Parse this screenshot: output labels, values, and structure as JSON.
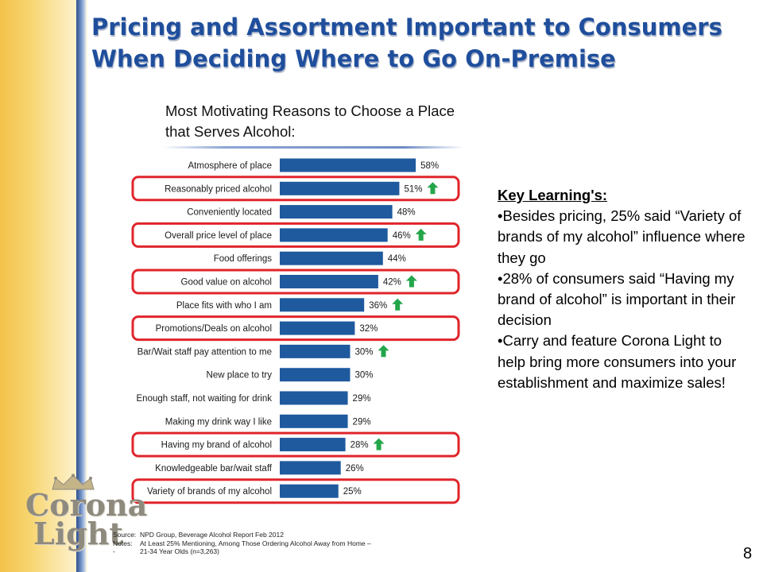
{
  "slide": {
    "title": "Pricing and Assortment Important to Consumers When Deciding Where to Go On-Premise",
    "page_number": "8"
  },
  "chart_subtitle": "Most Motivating Reasons to Choose a Place that Serves Alcohol:",
  "chart_data": {
    "type": "bar",
    "orientation": "horizontal",
    "categories": [
      "Atmosphere of place",
      "Reasonably priced alcohol",
      "Conveniently located",
      "Overall price level of place",
      "Food offerings",
      "Good value on alcohol",
      "Place fits with who I am",
      "Promotions/Deals on alcohol",
      "Bar/Wait staff pay attention to me",
      "New place to try",
      "Enough staff, not waiting for drink",
      "Making my drink way I like",
      "Having my brand of alcohol",
      "Knowledgeable bar/wait staff",
      "Variety of brands of my alcohol"
    ],
    "values": [
      58,
      51,
      48,
      46,
      44,
      42,
      36,
      32,
      30,
      30,
      29,
      29,
      28,
      26,
      25
    ],
    "labels": [
      "58%",
      "51%",
      "48%",
      "46%",
      "44%",
      "42%",
      "36%",
      "32%",
      "30%",
      "30%",
      "29%",
      "29%",
      "28%",
      "26%",
      "25%"
    ],
    "up_arrow": [
      false,
      true,
      false,
      true,
      false,
      true,
      true,
      false,
      true,
      false,
      false,
      false,
      true,
      false,
      false
    ],
    "highlighted": [
      false,
      true,
      false,
      true,
      false,
      true,
      false,
      true,
      false,
      false,
      false,
      false,
      true,
      false,
      true
    ],
    "bar_color": "#1f5a9e",
    "arrow_color": "#23a64a",
    "highlight_color": "#e0252b",
    "grid": false
  },
  "key_learnings": {
    "heading": "Key Learning's:",
    "bullets": [
      "•Besides pricing, 25% said “Variety of brands of my alcohol” influence where they go",
      "•28% of consumers said “Having my brand of alcohol” is important in their decision",
      "•Carry and feature Corona Light to help bring more consumers into your establishment and maximize sales!"
    ]
  },
  "logo": {
    "line1": "Corona",
    "line2": "Light",
    "color": "#8f8a7e"
  },
  "footer": {
    "source_label": "Source:",
    "source_text": "NPD Group, Beverage Alcohol Report Feb 2012",
    "notes_label": "Notes:",
    "notes_text": "At Least 25% Mentioning, Among Those Ordering Alcohol Away from Home –",
    "notes_dash": "-",
    "notes_text2": "21-34 Year Olds (n=3,263)"
  }
}
